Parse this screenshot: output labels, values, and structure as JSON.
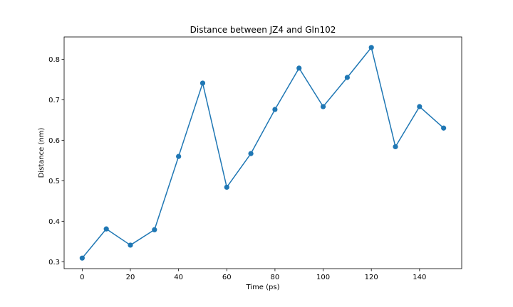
{
  "chart_data": {
    "type": "line",
    "title": "Distance between JZ4 and Gln102",
    "xlabel": "Time (ps)",
    "ylabel": "Distance (nm)",
    "x": [
      0,
      10,
      20,
      30,
      40,
      50,
      60,
      70,
      80,
      90,
      100,
      110,
      120,
      130,
      140,
      150
    ],
    "series": [
      {
        "values": [
          0.309,
          0.381,
          0.341,
          0.379,
          0.56,
          0.741,
          0.484,
          0.567,
          0.676,
          0.778,
          0.683,
          0.755,
          0.829,
          0.584,
          0.683,
          0.63
        ],
        "color": "#1f77b4",
        "marker": "circle"
      }
    ],
    "xlim": [
      -7.5,
      157.5
    ],
    "ylim": [
      0.283,
      0.855
    ],
    "xticks": [
      0,
      20,
      40,
      60,
      80,
      100,
      120,
      140
    ],
    "yticks": [
      0.3,
      0.4,
      0.5,
      0.6,
      0.7,
      0.8
    ],
    "grid": false,
    "legend": "none"
  }
}
